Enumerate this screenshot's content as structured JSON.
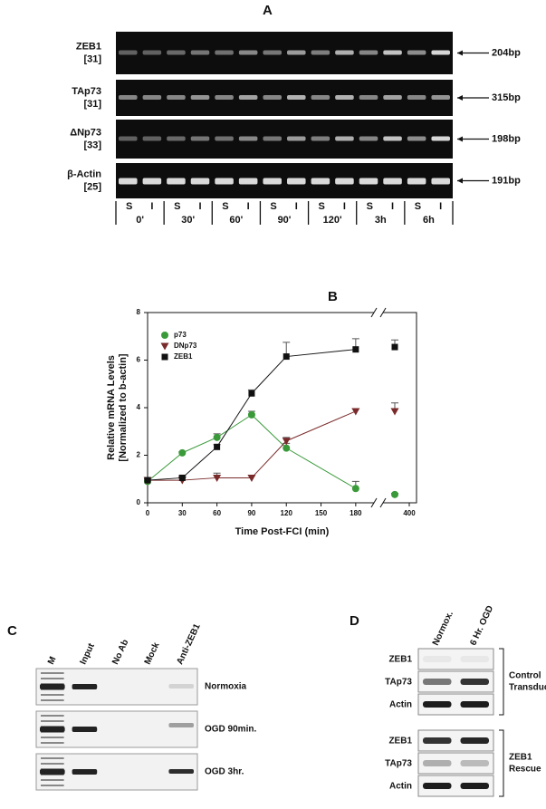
{
  "panel_a": {
    "label": "A",
    "gels": [
      {
        "name": "ZEB1",
        "cycles": "[31]",
        "size": "204bp"
      },
      {
        "name": "TAp73",
        "cycles": "[31]",
        "size": "315bp"
      },
      {
        "name": "ΔNp73",
        "cycles": "[33]",
        "size": "198bp"
      },
      {
        "name": "β-Actin",
        "cycles": "[25]",
        "size": "191bp"
      }
    ],
    "lane_labels": [
      "S",
      "I"
    ],
    "timepoints": [
      "0'",
      "30'",
      "60'",
      "90'",
      "120'",
      "3h",
      "6h"
    ]
  },
  "chart_data": {
    "type": "line",
    "panel_label": "B",
    "x_label": "Time Post-FCI (min)",
    "y_label": [
      "Relative mRNA Levels",
      "[Normalized to b-actin]"
    ],
    "x": [
      0,
      30,
      60,
      90,
      120,
      180,
      360
    ],
    "xlim": [
      0,
      420
    ],
    "x_break": [
      195,
      330
    ],
    "xticks": [
      0,
      30,
      60,
      90,
      120,
      150,
      180,
      400
    ],
    "ylim": [
      0,
      8
    ],
    "yticks": [
      0,
      2,
      4,
      6,
      8
    ],
    "series": [
      {
        "name": "p73",
        "color": "#3a9a3a",
        "marker": "circle",
        "values": [
          0.9,
          2.1,
          2.75,
          3.7,
          2.3,
          0.6,
          0.35
        ],
        "errors": [
          0.05,
          0.05,
          0.15,
          0.15,
          0.2,
          0.3,
          0.05
        ]
      },
      {
        "name": "DNp73",
        "color": "#7a2a2a",
        "marker": "triangle",
        "values": [
          0.95,
          0.95,
          1.05,
          1.05,
          2.6,
          3.85,
          3.85
        ],
        "errors": [
          0.05,
          0.15,
          0.2,
          0.1,
          0.15,
          0.1,
          0.35
        ]
      },
      {
        "name": "ZEB1",
        "color": "#111111",
        "marker": "square",
        "values": [
          0.95,
          1.05,
          2.35,
          4.6,
          6.15,
          6.45,
          6.55
        ],
        "errors": [
          0.05,
          0.1,
          0.1,
          0.15,
          0.6,
          0.45,
          0.3
        ]
      }
    ]
  },
  "panel_c": {
    "label": "C",
    "columns": [
      "M",
      "Input",
      "No Ab",
      "Mock",
      "Anti-ZEB1"
    ],
    "rows": [
      "Normoxia",
      "OGD 90min.",
      "OGD 3hr."
    ]
  },
  "panel_d": {
    "label": "D",
    "columns": [
      "Normox.",
      "6 Hr. OGD"
    ],
    "groups": [
      {
        "rows": [
          "ZEB1",
          "TAp73",
          "Actin"
        ],
        "name": [
          "Control",
          "Transduc"
        ]
      },
      {
        "rows": [
          "ZEB1",
          "TAp73",
          "Actin"
        ],
        "name": [
          "ZEB1",
          "Rescue"
        ]
      }
    ]
  }
}
